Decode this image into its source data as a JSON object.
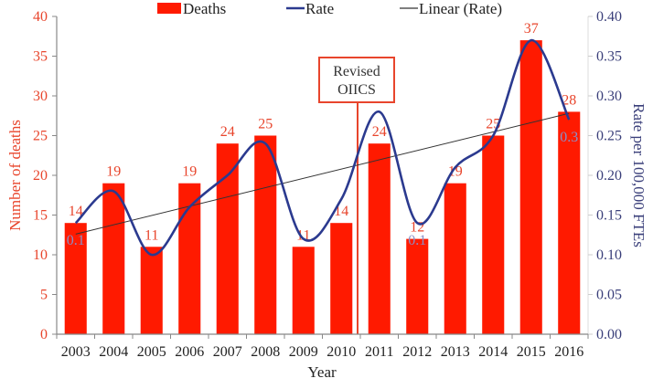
{
  "chart_data": {
    "type": "bar",
    "title": "",
    "xlabel": "Year",
    "ylabel": "Number of deaths",
    "y2label": "Rate per 100,000 FTEs",
    "categories": [
      "2003",
      "2004",
      "2005",
      "2006",
      "2007",
      "2008",
      "2009",
      "2010",
      "2011",
      "2012",
      "2013",
      "2014",
      "2015",
      "2016"
    ],
    "ylim": [
      0,
      40
    ],
    "yticks": [
      "0",
      "5",
      "10",
      "15",
      "20",
      "25",
      "30",
      "35",
      "40"
    ],
    "y2lim": [
      0,
      0.4
    ],
    "y2ticks": [
      "0.00",
      "0.05",
      "0.10",
      "0.15",
      "0.20",
      "0.25",
      "0.30",
      "0.35",
      "0.40"
    ],
    "grid": false,
    "legend_position": "top",
    "series": [
      {
        "name": "Deaths",
        "type": "bar",
        "axis": "left",
        "color": "#ff1a00",
        "values": [
          14,
          19,
          11,
          19,
          24,
          25,
          11,
          14,
          24,
          12,
          19,
          25,
          37,
          28
        ],
        "labels": [
          "14",
          "19",
          "11",
          "19",
          "24",
          "25",
          "11",
          "14",
          "24",
          "12",
          "19",
          "25",
          "37",
          "28"
        ]
      },
      {
        "name": "Rate",
        "type": "line",
        "smooth": true,
        "axis": "right",
        "color": "#2b3a8f",
        "values": [
          0.14,
          0.18,
          0.1,
          0.16,
          0.2,
          0.24,
          0.12,
          0.17,
          0.28,
          0.14,
          0.21,
          0.25,
          0.37,
          0.27
        ]
      },
      {
        "name": "Linear (Rate)",
        "type": "trendline",
        "axis": "right",
        "color": "#333333",
        "start": 0.126,
        "end": 0.278
      }
    ],
    "rate_labels": [
      {
        "category": "2003",
        "text": "0.1"
      },
      {
        "category": "2012",
        "text": "0.1"
      },
      {
        "category": "2016",
        "text": "0.3"
      }
    ],
    "annotations": [
      {
        "category_between": [
          "2010",
          "2011"
        ],
        "text_lines": [
          "Revised",
          "OIICS"
        ],
        "type": "vertical-line",
        "color": "#e8452c"
      }
    ]
  }
}
